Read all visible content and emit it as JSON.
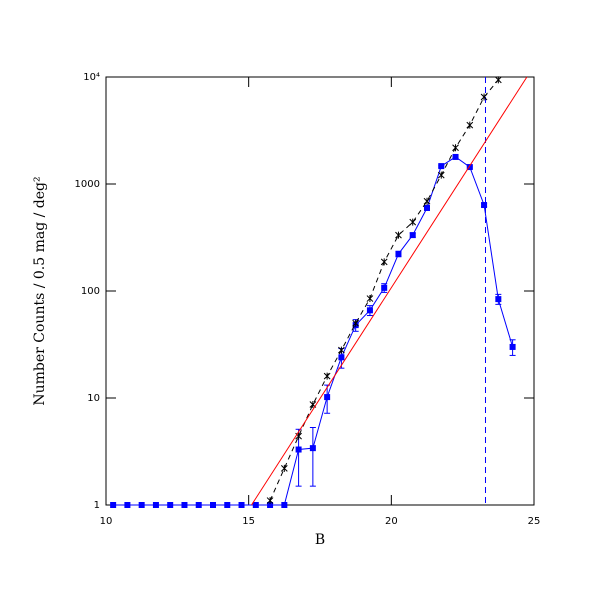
{
  "chart_data": {
    "type": "line",
    "xlabel": "B",
    "ylabel": "Number Counts / 0.5 mag / deg²",
    "xlim": [
      10,
      25
    ],
    "xticks": [
      10,
      15,
      20,
      25
    ],
    "ylim": [
      1,
      10000
    ],
    "log_y": true,
    "yticks": [
      1,
      10,
      100,
      1000,
      {
        "value": 10000,
        "label": "10⁴"
      }
    ],
    "series": [
      {
        "color": "#0000ff",
        "style": "solid",
        "marker": "square",
        "x": [
          10.25,
          10.75,
          11.25,
          11.75,
          12.25,
          12.75,
          13.25,
          13.75,
          14.25,
          14.75,
          15.25,
          15.75,
          16.25,
          16.75,
          17.25,
          17.75,
          18.25,
          18.75,
          19.25,
          19.75,
          20.25,
          20.75,
          21.25,
          21.75,
          22.25,
          22.75,
          23.25,
          23.75,
          24.25
        ],
        "values": [
          1,
          1,
          1,
          1,
          1,
          1,
          1,
          1,
          1,
          1,
          1,
          1,
          1,
          3.3,
          3.4,
          10.2,
          24,
          48,
          66,
          107,
          222,
          333,
          597,
          1470,
          1790,
          1440,
          636,
          84,
          30
        ],
        "errors": [
          null,
          null,
          null,
          null,
          null,
          null,
          null,
          null,
          null,
          null,
          null,
          null,
          null,
          1.8,
          1.9,
          3,
          5,
          6,
          7,
          10,
          13,
          15,
          20,
          30,
          35,
          30,
          20,
          9,
          5
        ]
      },
      {
        "color": "#000000",
        "style": "dashed",
        "marker": "star",
        "x": [
          15.75,
          16.25,
          16.75,
          17.25,
          17.75,
          18.25,
          18.75,
          19.25,
          19.75,
          20.25,
          20.75,
          21.25,
          21.75,
          22.25,
          22.75,
          23.25,
          23.75
        ],
        "values": [
          1.1,
          2.2,
          4.4,
          8.7,
          16,
          28,
          50,
          85,
          187,
          333,
          440,
          690,
          1210,
          2180,
          3550,
          6500,
          9400
        ]
      },
      {
        "color": "#ff0000",
        "style": "solid",
        "marker": "none",
        "x": [
          15.1,
          24.75
        ],
        "values": [
          1,
          10000
        ]
      }
    ],
    "vlines": [
      {
        "x": 23.3,
        "color": "#0000ff",
        "style": "dashed"
      }
    ]
  }
}
